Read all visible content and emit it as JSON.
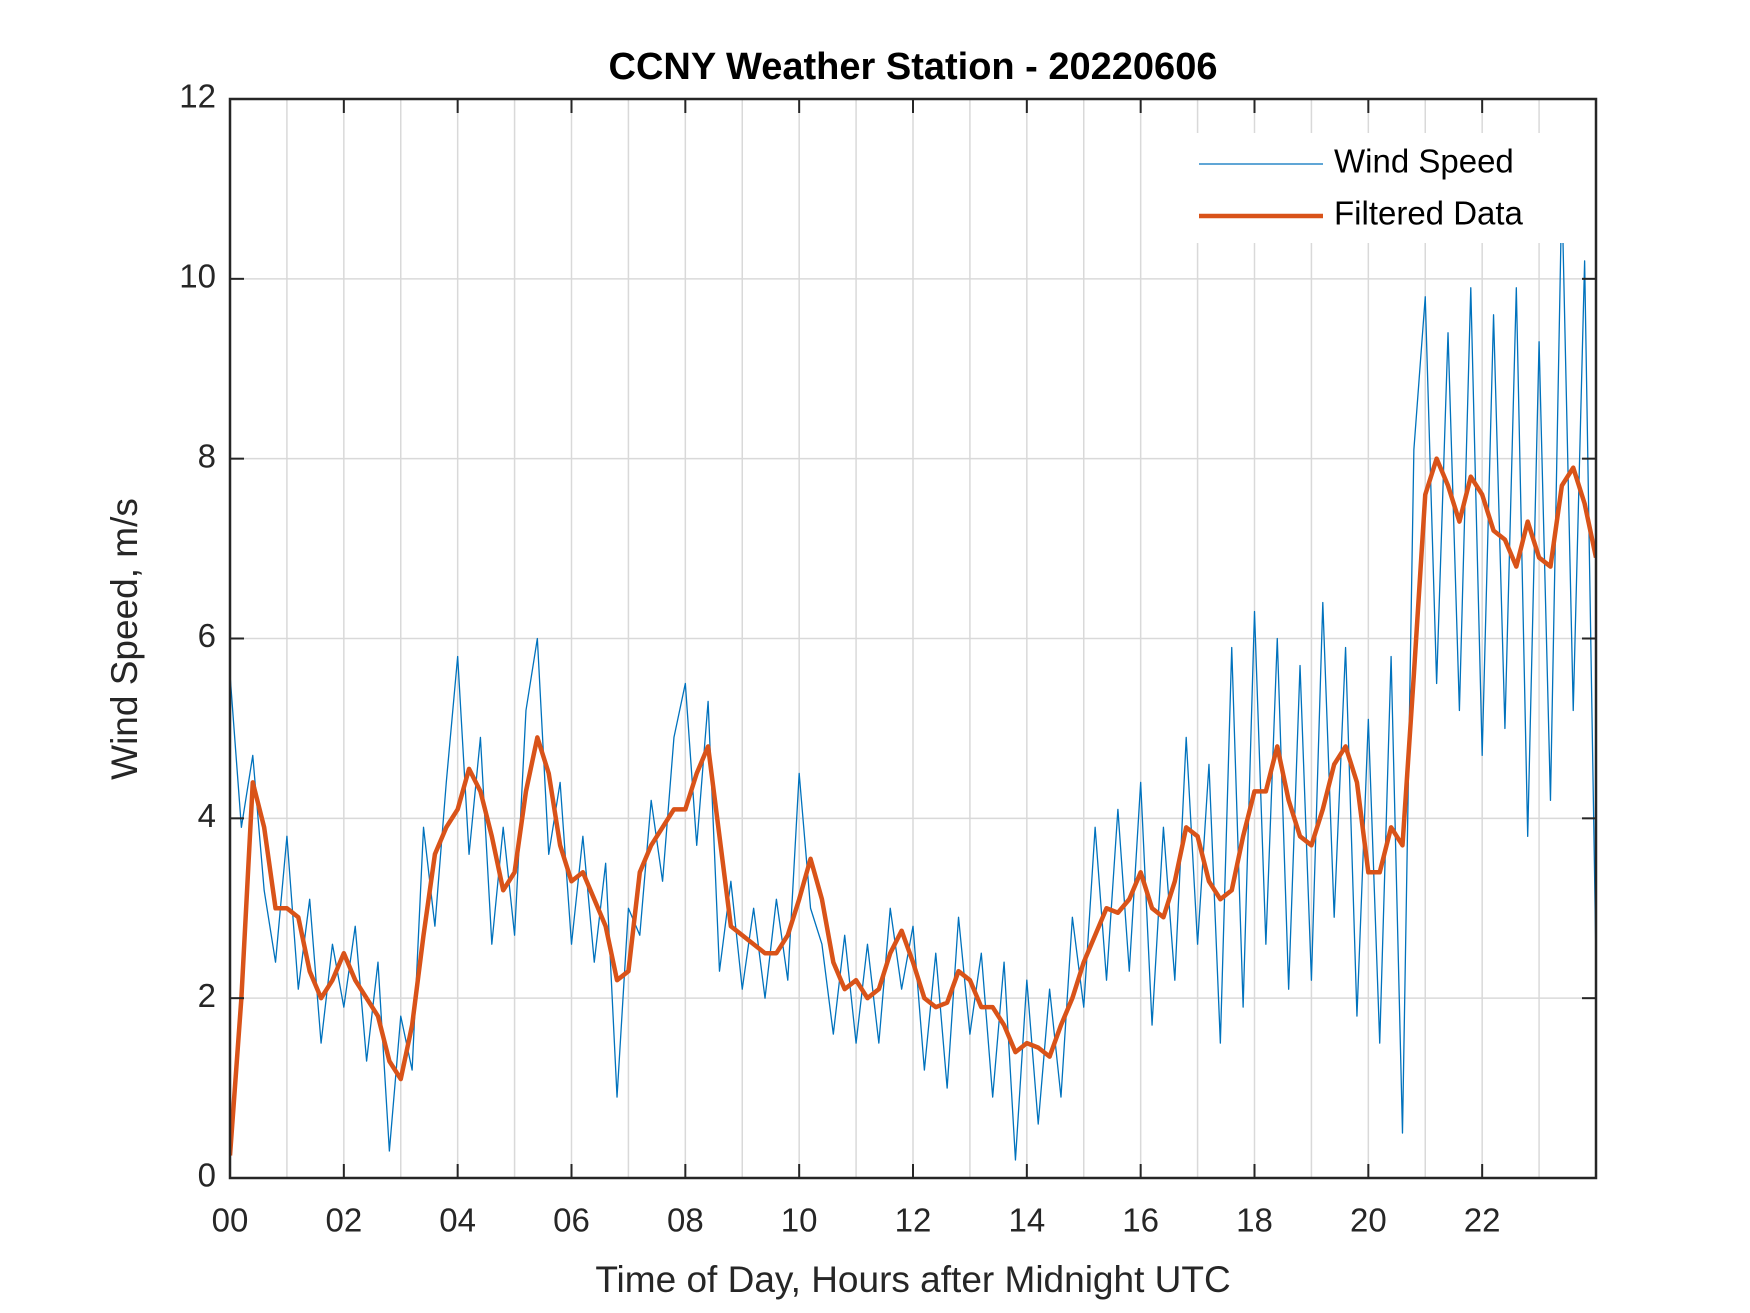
{
  "chart_data": {
    "type": "line",
    "title": "CCNY Weather Station - 20220606",
    "xlabel": "Time of Day, Hours after Midnight UTC",
    "ylabel": "Wind Speed, m/s",
    "x": [
      0,
      0.2,
      0.4,
      0.6,
      0.8,
      1,
      1.2,
      1.4,
      1.6,
      1.8,
      2,
      2.2,
      2.4,
      2.6,
      2.8,
      3,
      3.2,
      3.4,
      3.6,
      3.8,
      4,
      4.2,
      4.4,
      4.6,
      4.8,
      5,
      5.2,
      5.4,
      5.6,
      5.8,
      6,
      6.2,
      6.4,
      6.6,
      6.8,
      7,
      7.2,
      7.4,
      7.6,
      7.8,
      8,
      8.2,
      8.4,
      8.6,
      8.8,
      9,
      9.2,
      9.4,
      9.6,
      9.8,
      10,
      10.2,
      10.4,
      10.6,
      10.8,
      11,
      11.2,
      11.4,
      11.6,
      11.8,
      12,
      12.2,
      12.4,
      12.6,
      12.8,
      13,
      13.2,
      13.4,
      13.6,
      13.8,
      14,
      14.2,
      14.4,
      14.6,
      14.8,
      15,
      15.2,
      15.4,
      15.6,
      15.8,
      16,
      16.2,
      16.4,
      16.6,
      16.8,
      17,
      17.2,
      17.4,
      17.6,
      17.8,
      18,
      18.2,
      18.4,
      18.6,
      18.8,
      19,
      19.2,
      19.4,
      19.6,
      19.8,
      20,
      20.2,
      20.4,
      20.6,
      20.8,
      21,
      21.2,
      21.4,
      21.6,
      21.8,
      22,
      22.2,
      22.4,
      22.6,
      22.8,
      23,
      23.2,
      23.4,
      23.6,
      23.8,
      24
    ],
    "series": [
      {
        "name": "Wind Speed",
        "color": "#0072BD",
        "width": 1.3,
        "values": [
          5.6,
          3.9,
          4.7,
          3.2,
          2.4,
          3.8,
          2.1,
          3.1,
          1.5,
          2.6,
          1.9,
          2.8,
          1.3,
          2.4,
          0.3,
          1.8,
          1.2,
          3.9,
          2.8,
          4.4,
          5.8,
          3.6,
          4.9,
          2.6,
          3.9,
          2.7,
          5.2,
          6.0,
          3.6,
          4.4,
          2.6,
          3.8,
          2.4,
          3.5,
          0.9,
          3.0,
          2.7,
          4.2,
          3.3,
          4.9,
          5.5,
          3.7,
          5.3,
          2.3,
          3.3,
          2.1,
          3.0,
          2.0,
          3.1,
          2.2,
          4.5,
          3.0,
          2.6,
          1.6,
          2.7,
          1.5,
          2.6,
          1.5,
          3.0,
          2.1,
          2.8,
          1.2,
          2.5,
          1.0,
          2.9,
          1.6,
          2.5,
          0.9,
          2.4,
          0.2,
          2.2,
          0.6,
          2.1,
          0.9,
          2.9,
          1.9,
          3.9,
          2.2,
          4.1,
          2.3,
          4.4,
          1.7,
          3.9,
          2.2,
          4.9,
          2.6,
          4.6,
          1.5,
          5.9,
          1.9,
          6.3,
          2.6,
          6.0,
          2.1,
          5.7,
          2.2,
          6.4,
          2.9,
          5.9,
          1.8,
          5.1,
          1.5,
          5.8,
          0.5,
          8.1,
          9.8,
          5.5,
          9.4,
          5.2,
          9.9,
          4.7,
          9.6,
          5.0,
          9.9,
          3.8,
          9.3,
          4.2,
          11.0,
          5.2,
          10.2,
          2.4
        ]
      },
      {
        "name": "Filtered Data",
        "color": "#D95319",
        "width": 4.5,
        "values": [
          0.25,
          2.0,
          4.4,
          3.9,
          3.0,
          3.0,
          2.9,
          2.3,
          2.0,
          2.2,
          2.5,
          2.2,
          2.0,
          1.8,
          1.3,
          1.1,
          1.7,
          2.7,
          3.6,
          3.9,
          4.1,
          4.55,
          4.3,
          3.8,
          3.2,
          3.4,
          4.3,
          4.9,
          4.5,
          3.7,
          3.3,
          3.4,
          3.1,
          2.8,
          2.2,
          2.3,
          3.4,
          3.7,
          3.9,
          4.1,
          4.1,
          4.5,
          4.8,
          3.8,
          2.8,
          2.7,
          2.6,
          2.5,
          2.5,
          2.7,
          3.1,
          3.55,
          3.1,
          2.4,
          2.1,
          2.2,
          2.0,
          2.1,
          2.5,
          2.75,
          2.4,
          2.0,
          1.9,
          1.95,
          2.3,
          2.2,
          1.9,
          1.9,
          1.7,
          1.4,
          1.5,
          1.45,
          1.35,
          1.7,
          2.0,
          2.4,
          2.7,
          3.0,
          2.95,
          3.1,
          3.4,
          3.0,
          2.9,
          3.3,
          3.9,
          3.8,
          3.3,
          3.1,
          3.2,
          3.8,
          4.3,
          4.3,
          4.8,
          4.2,
          3.8,
          3.7,
          4.1,
          4.6,
          4.8,
          4.4,
          3.4,
          3.4,
          3.9,
          3.7,
          5.6,
          7.6,
          8.0,
          7.7,
          7.3,
          7.8,
          7.6,
          7.2,
          7.1,
          6.8,
          7.3,
          6.9,
          6.8,
          7.7,
          7.9,
          7.5,
          6.9
        ]
      }
    ],
    "xlim": [
      0,
      24
    ],
    "xticks": [
      {
        "value": 0,
        "label": "00"
      },
      {
        "value": 2,
        "label": "02"
      },
      {
        "value": 4,
        "label": "04"
      },
      {
        "value": 6,
        "label": "06"
      },
      {
        "value": 8,
        "label": "08"
      },
      {
        "value": 10,
        "label": "10"
      },
      {
        "value": 12,
        "label": "12"
      },
      {
        "value": 14,
        "label": "14"
      },
      {
        "value": 16,
        "label": "16"
      },
      {
        "value": 18,
        "label": "18"
      },
      {
        "value": 20,
        "label": "20"
      },
      {
        "value": 22,
        "label": "22"
      }
    ],
    "xminorticks": [
      1,
      3,
      5,
      7,
      9,
      11,
      13,
      15,
      17,
      19,
      21,
      23
    ],
    "ylim": [
      0,
      12
    ],
    "yticks": [
      0,
      2,
      4,
      6,
      8,
      10,
      12
    ],
    "grid": true,
    "legend": "upper right"
  }
}
